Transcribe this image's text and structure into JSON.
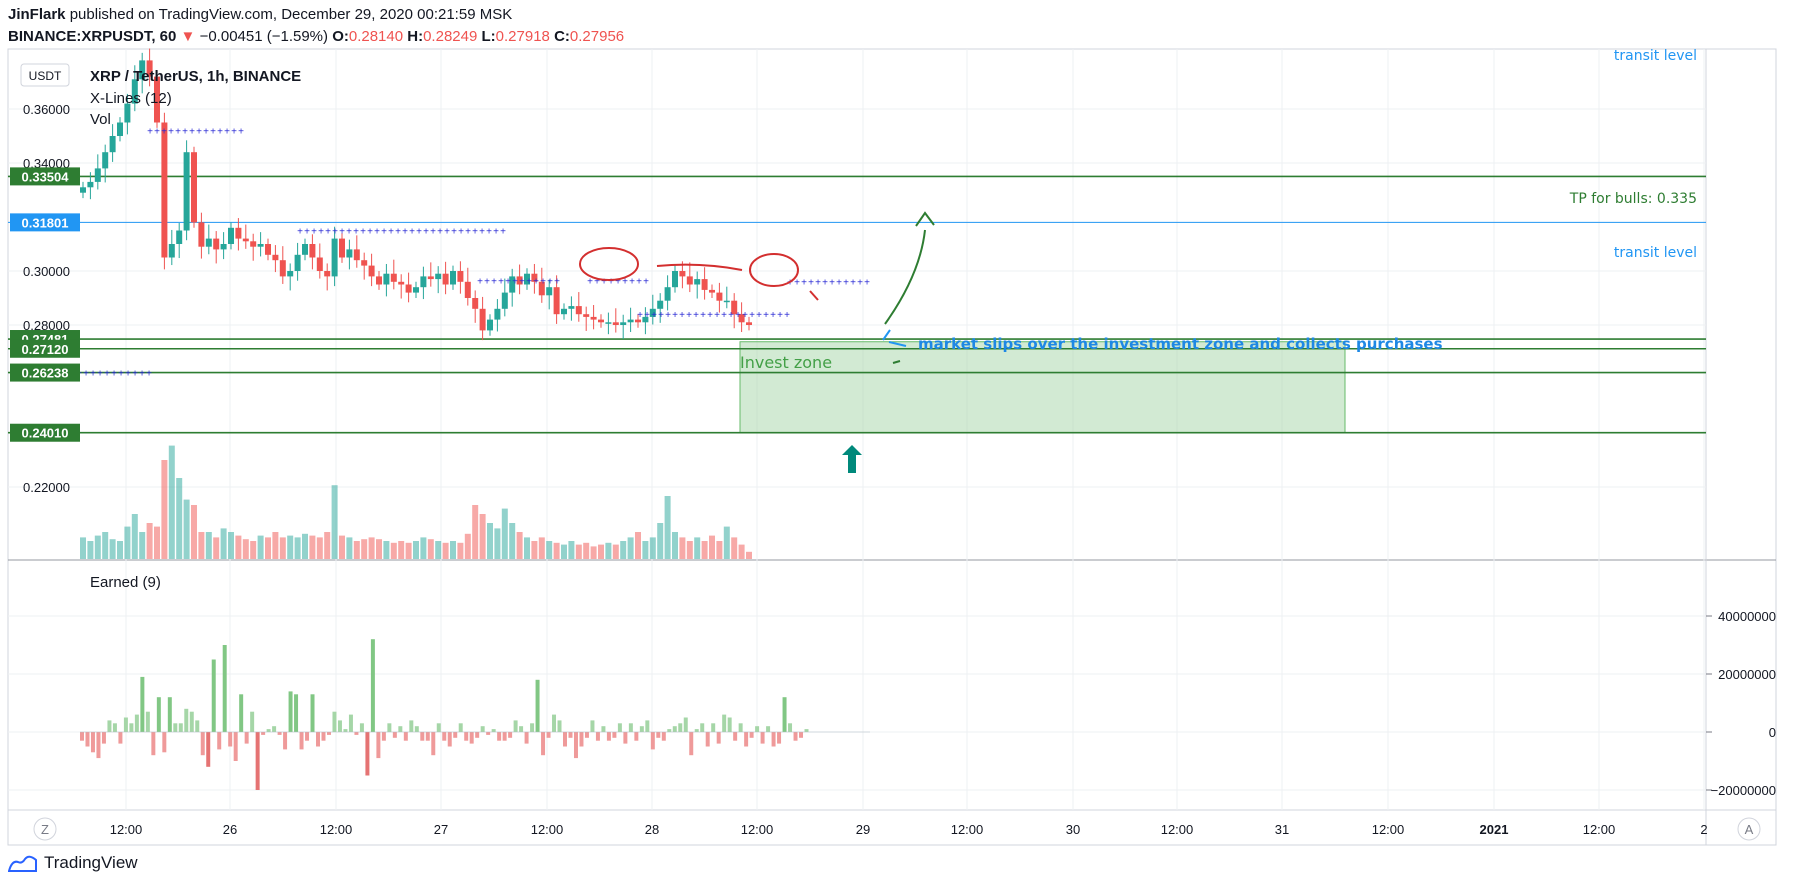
{
  "header": {
    "author": "JinFlark",
    "published": "published on TradingView.com, December 29, 2020 00:21:59 MSK",
    "symbol": "BINANCE:XRPUSDT, 60",
    "change": "−0.00451 (−1.59%)",
    "o_label": "O:",
    "o_value": "0.28140",
    "h_label": "H:",
    "h_value": "0.28249",
    "l_label": "L:",
    "l_value": "0.27918",
    "c_label": "C:",
    "c_value": "0.27956"
  },
  "footer": {
    "brand": "TradingView"
  },
  "colors": {
    "up": "#26a69a",
    "down": "#ef5350",
    "level": "#2e7d32",
    "transit": "#2196f3",
    "zone": "#a5d6a7"
  },
  "chart_data": [
    {
      "type": "candlestick",
      "title": "XRP / TetherUS, 1h, BINANCE",
      "indicators": [
        "X-Lines (12)",
        "Vol"
      ],
      "currency_badge": "USDT",
      "price_axis_ticks": [
        "0.36000",
        "0.34000",
        "0.30000",
        "0.28000",
        "0.22000"
      ],
      "ylim": [
        0.215,
        0.382
      ],
      "x_ticks": [
        "12:00",
        "26",
        "12:00",
        "27",
        "12:00",
        "28",
        "12:00",
        "29",
        "12:00",
        "30",
        "12:00",
        "31",
        "12:00",
        "2021",
        "12:00",
        "2"
      ],
      "closes": [
        0.331,
        0.333,
        0.338,
        0.344,
        0.35,
        0.355,
        0.362,
        0.371,
        0.378,
        0.372,
        0.355,
        0.305,
        0.31,
        0.315,
        0.344,
        0.318,
        0.309,
        0.312,
        0.308,
        0.31,
        0.316,
        0.312,
        0.311,
        0.309,
        0.31,
        0.306,
        0.304,
        0.298,
        0.3,
        0.306,
        0.31,
        0.305,
        0.3,
        0.298,
        0.312,
        0.305,
        0.308,
        0.304,
        0.302,
        0.298,
        0.295,
        0.299,
        0.296,
        0.295,
        0.292,
        0.294,
        0.298,
        0.297,
        0.299,
        0.295,
        0.3,
        0.296,
        0.29,
        0.286,
        0.278,
        0.282,
        0.286,
        0.292,
        0.298,
        0.295,
        0.299,
        0.296,
        0.291,
        0.294,
        0.284,
        0.286,
        0.287,
        0.284,
        0.283,
        0.282,
        0.281,
        0.281,
        0.28,
        0.281,
        0.282,
        0.281,
        0.283,
        0.286,
        0.289,
        0.294,
        0.3,
        0.298,
        0.295,
        0.297,
        0.293,
        0.292,
        0.289,
        0.289,
        0.284,
        0.281,
        0.28
      ],
      "volumes": [
        0.12,
        0.1,
        0.13,
        0.15,
        0.11,
        0.1,
        0.18,
        0.25,
        0.15,
        0.2,
        0.18,
        0.55,
        0.63,
        0.45,
        0.33,
        0.3,
        0.15,
        0.15,
        0.12,
        0.17,
        0.15,
        0.13,
        0.11,
        0.1,
        0.13,
        0.12,
        0.15,
        0.12,
        0.13,
        0.12,
        0.14,
        0.13,
        0.12,
        0.15,
        0.41,
        0.13,
        0.12,
        0.1,
        0.11,
        0.12,
        0.11,
        0.1,
        0.09,
        0.1,
        0.09,
        0.1,
        0.12,
        0.11,
        0.1,
        0.09,
        0.1,
        0.09,
        0.14,
        0.3,
        0.25,
        0.2,
        0.17,
        0.28,
        0.2,
        0.15,
        0.12,
        0.1,
        0.12,
        0.1,
        0.09,
        0.08,
        0.1,
        0.08,
        0.09,
        0.07,
        0.08,
        0.09,
        0.08,
        0.1,
        0.12,
        0.15,
        0.1,
        0.12,
        0.2,
        0.35,
        0.15,
        0.12,
        0.1,
        0.12,
        0.1,
        0.13,
        0.1,
        0.18,
        0.12,
        0.08,
        0.04
      ],
      "levels": [
        {
          "label": "0.33504",
          "value": 0.33504
        },
        {
          "label": "0.31801",
          "value": 0.31801
        },
        {
          "label": "0.27481",
          "value": 0.27481
        },
        {
          "label": "0.27120",
          "value": 0.2712
        },
        {
          "label": "0.26238",
          "value": 0.26238
        },
        {
          "label": "0.24010",
          "value": 0.2401
        }
      ],
      "invest_zone": {
        "from": 0.2401,
        "to": 0.2738
      },
      "annotations": {
        "tp": "TP for bulls: 0.335",
        "transit_top": "transit level",
        "transit": "transit level",
        "market": "market slips over the investment zone and collects purchases",
        "invest": "Invest zone"
      }
    },
    {
      "type": "bar",
      "title": "Earned (9)",
      "axis_ticks": [
        "40000000",
        "20000000",
        "0",
        "−20000000"
      ],
      "ylim": [
        -27000000,
        55000000
      ],
      "values": [
        -3,
        -5,
        -7,
        -9,
        -4,
        4,
        3,
        -4,
        5,
        3,
        6,
        19,
        7,
        -8,
        12,
        -7,
        12,
        3,
        3,
        8,
        7,
        4,
        -8,
        -12,
        25,
        -6,
        30,
        -5,
        -10,
        13,
        -4,
        7,
        -20,
        -1,
        1,
        2,
        -1,
        -6,
        14,
        13,
        -6,
        -3,
        13,
        -5,
        -3,
        -1,
        7,
        4,
        1,
        6,
        -1,
        3,
        -15,
        32,
        -9,
        -3,
        3,
        -2,
        2,
        -3,
        4,
        2,
        -3,
        -3,
        -8,
        3,
        -3,
        -5,
        -2,
        3,
        -3,
        -4,
        -2,
        2,
        -1,
        1,
        -3,
        -3,
        -2,
        4,
        2,
        -4,
        3,
        18,
        -8,
        -2,
        6,
        4,
        -5,
        -2,
        -9,
        -5,
        -2,
        4,
        -3,
        2,
        -3,
        -2,
        3,
        -4,
        3,
        -3,
        2,
        4,
        -6,
        -2,
        -3,
        1,
        2,
        3,
        5,
        -8,
        1,
        3,
        -5,
        3,
        -4,
        6,
        5,
        -3,
        3,
        -5,
        -2,
        2,
        -4,
        2,
        -5,
        -4,
        12,
        3,
        -3,
        -2,
        1
      ]
    }
  ]
}
